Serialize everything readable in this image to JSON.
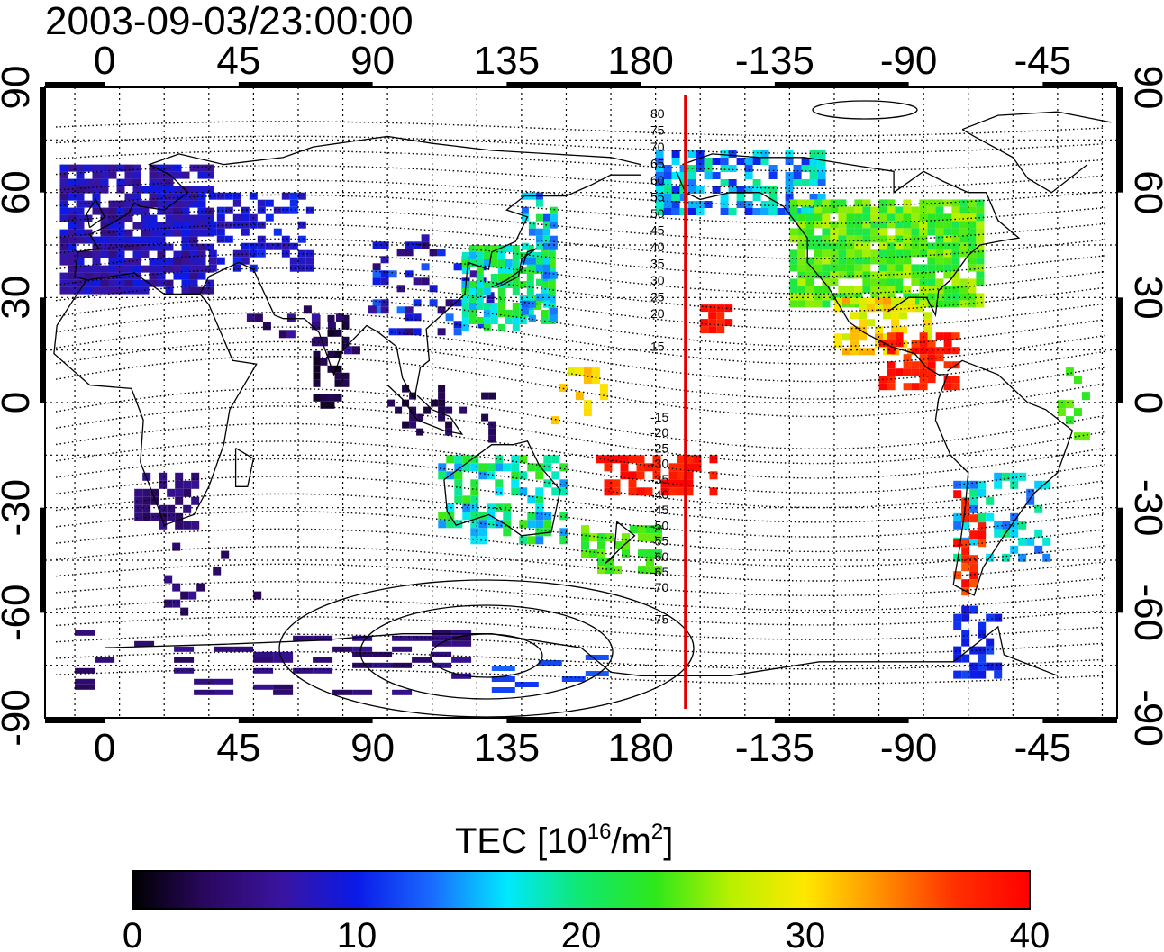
{
  "title": "2003-09-03/23:00:00",
  "map": {
    "lon_ticks_top": [
      "0",
      "45",
      "90",
      "135",
      "180",
      "-135",
      "-90",
      "-45"
    ],
    "lon_ticks_bottom": [
      "0",
      "45",
      "90",
      "135",
      "180",
      "-135",
      "-90",
      "-45"
    ],
    "lat_ticks_left": [
      "90",
      "60",
      "30",
      "0",
      "-30",
      "-60",
      "-90"
    ],
    "lat_ticks_right": [
      "90",
      "60",
      "30",
      "0",
      "-30",
      "-60",
      "-90"
    ],
    "dip_labels_north": [
      "80",
      "75",
      "70",
      "65",
      "60",
      "55",
      "50",
      "45",
      "40",
      "35",
      "30",
      "25",
      "20",
      "15"
    ],
    "dip_labels_south": [
      "-15",
      "-20",
      "-25",
      "-30",
      "-35",
      "-40",
      "-45",
      "-50",
      "-55",
      "-60",
      "-65",
      "-70",
      "-75"
    ],
    "terminator_longitude": -165,
    "terminator_color": "#e00000"
  },
  "colorbar": {
    "title_prefix": "TEC  [10",
    "title_exp1": "16",
    "title_mid": "/m",
    "title_exp2": "2",
    "title_suffix": "]",
    "min": 0,
    "max": 40,
    "ticks": [
      "0",
      "10",
      "20",
      "30",
      "40"
    ],
    "colors": [
      "#000000",
      "#2a0860",
      "#3a14a0",
      "#0a1ae8",
      "#1a6aff",
      "#00e8ff",
      "#10e870",
      "#2ee81a",
      "#b8f000",
      "#ffe800",
      "#ff9000",
      "#ff3000",
      "#ff0000"
    ]
  }
}
